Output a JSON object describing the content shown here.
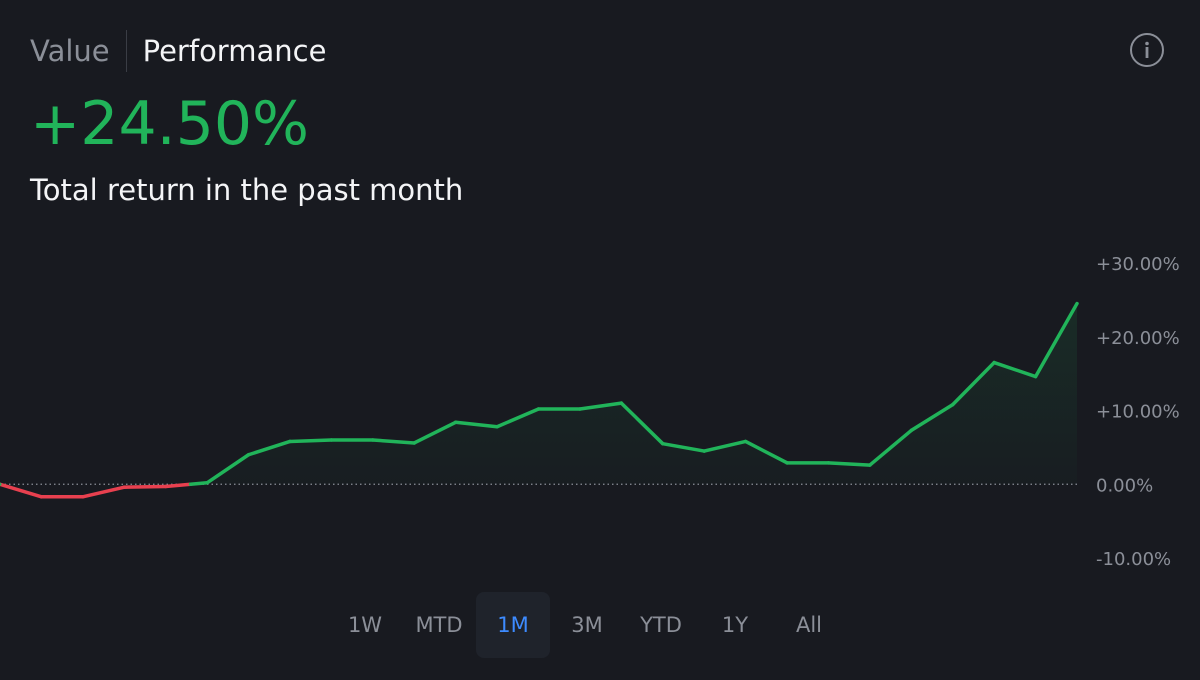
{
  "tabs": {
    "value": "Value",
    "performance": "Performance",
    "active": "Performance"
  },
  "info_icon": "info-circle-icon",
  "summary": {
    "return_value": "+24.50%",
    "description": "Total return in the past month"
  },
  "colors": {
    "positive": "#21b45a",
    "negative": "#e8404f",
    "active_range": "#3d8bff",
    "background": "#181a20"
  },
  "ranges": [
    "1W",
    "MTD",
    "1M",
    "3M",
    "YTD",
    "1Y",
    "All"
  ],
  "active_range": "1M",
  "chart_data": {
    "type": "line",
    "y_ticks": [
      "+30.00%",
      "+20.00%",
      "+10.00%",
      "0.00%",
      "-10.00%"
    ],
    "ylim": [
      -10,
      30
    ],
    "baseline": 0,
    "series": [
      {
        "values": [
          0.0,
          -1.7,
          -1.7,
          -0.4,
          -0.3,
          0.2,
          4.0,
          5.8,
          6.0,
          6.0,
          5.6,
          8.4,
          7.8,
          10.2,
          10.2,
          11.0,
          5.5,
          4.5,
          5.8,
          2.9,
          2.9,
          2.6,
          7.3,
          10.8,
          16.5,
          14.6,
          24.5
        ]
      }
    ]
  }
}
